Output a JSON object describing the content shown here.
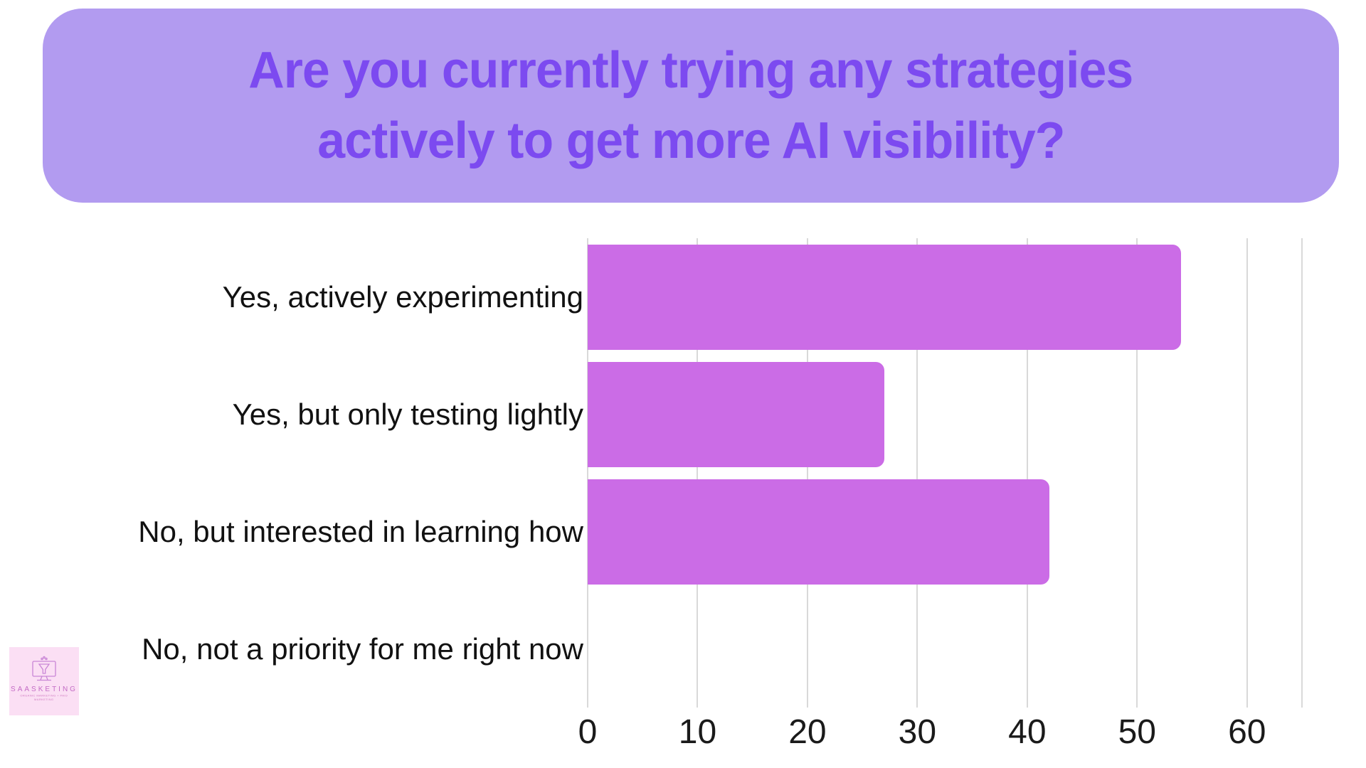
{
  "header": {
    "title_line1": "Are you currently trying any strategies",
    "title_line2": "actively to get more AI visibility?",
    "background_color": "#b29bf0",
    "text_color": "#7c4af0"
  },
  "chart_data": {
    "type": "bar",
    "orientation": "horizontal",
    "title": "Are you currently trying any strategies actively to get more AI visibility?",
    "categories": [
      "Yes, actively experimenting",
      "Yes, but only testing lightly",
      "No, but interested in learning how",
      "No, not a priority for me right now"
    ],
    "values": [
      54,
      27,
      42,
      0
    ],
    "x_ticks": [
      0,
      10,
      20,
      30,
      40,
      50,
      60
    ],
    "xlim": [
      0,
      65
    ],
    "xlabel": "",
    "ylabel": "",
    "grid": true,
    "legend": false,
    "bar_color": "#cb6ce6",
    "grid_color": "#d9d9d9",
    "label_color": "#111111"
  },
  "logo": {
    "name": "SAASKETING",
    "tagline_line1": "ORGANIC MARKETING + PAID",
    "tagline_line2": "MARKETING",
    "background_color": "#fbdff4",
    "accent_color": "#c36cc5",
    "icon": "monitor-funnel-icon"
  }
}
